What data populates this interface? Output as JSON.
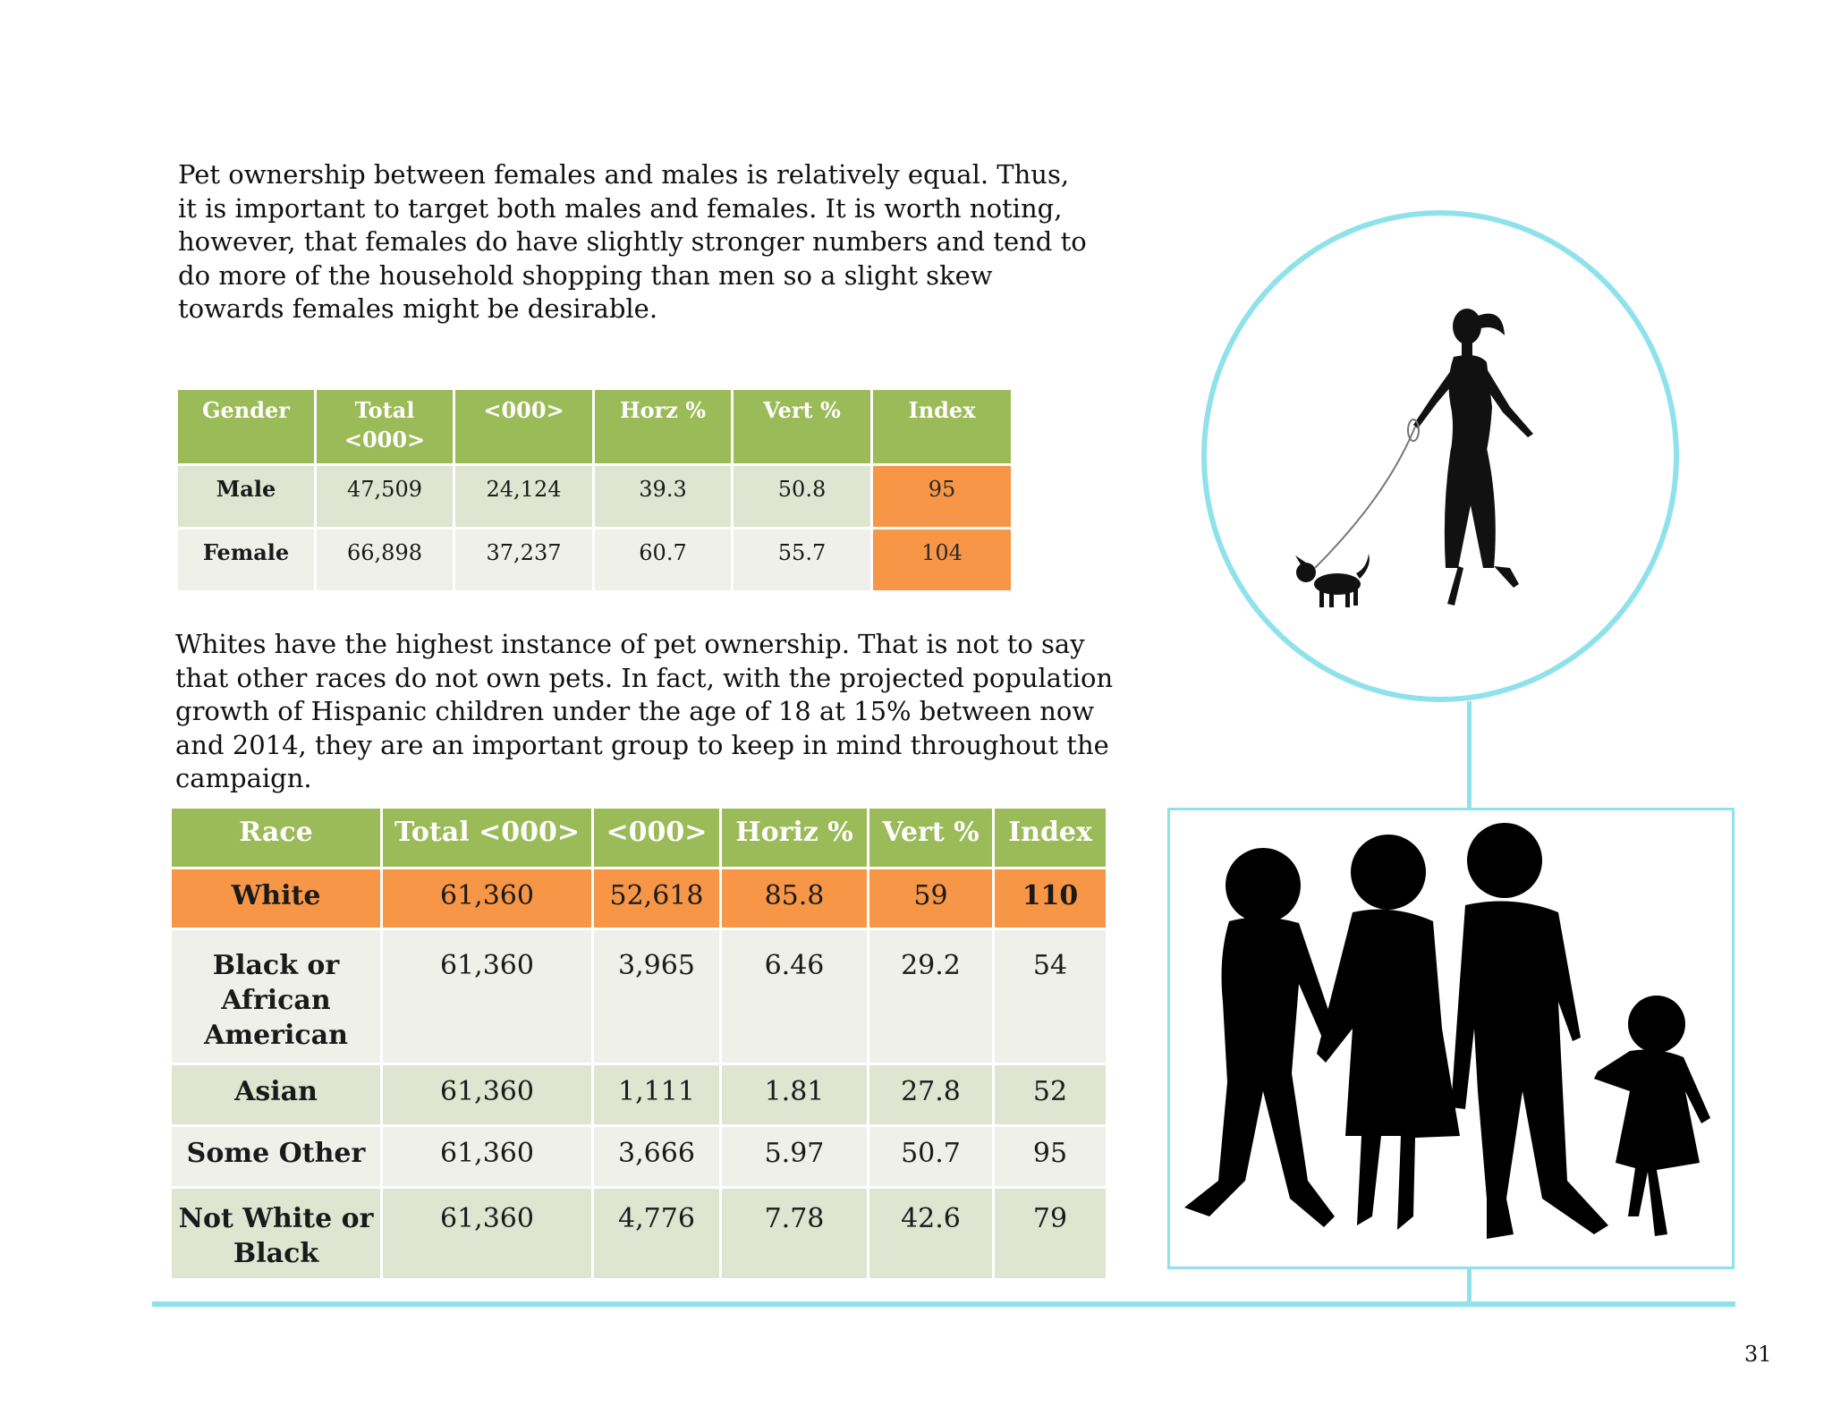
{
  "intro_gender": "Pet ownership between females and males is relatively equal. Thus, it is important to target both males and females. It is worth noting, however, that females do have slightly stronger numbers and tend to do more of the household shopping than men so a slight skew towards females might be desirable.",
  "intro_race": "Whites have the highest instance of pet ownership. That is not to say that other races do not own pets. In fact, with the projected population growth of Hispanic children under the age of 18 at 15% between now and 2014, they are an important group to keep in mind throughout the campaign.",
  "gender_table": {
    "headers": [
      "Gender",
      "Total <000>",
      "<000>",
      "Horz %",
      "Vert %",
      "Index"
    ],
    "rows": [
      {
        "label": "Male",
        "total": "47,509",
        "count": "24,124",
        "horz": "39.3",
        "vert": "50.8",
        "index": "95"
      },
      {
        "label": "Female",
        "total": "66,898",
        "count": "37,237",
        "horz": "60.7",
        "vert": "55.7",
        "index": "104"
      }
    ]
  },
  "race_table": {
    "headers": [
      "Race",
      "Total <000>",
      "<000>",
      "Horiz %",
      "Vert %",
      "Index"
    ],
    "rows": [
      {
        "label": "White",
        "total": "61,360",
        "count": "52,618",
        "horz": "85.8",
        "vert": "59",
        "index": "110"
      },
      {
        "label": "Black or African American",
        "total": "61,360",
        "count": "3,965",
        "horz": "6.46",
        "vert": "29.2",
        "index": "54"
      },
      {
        "label": "Asian",
        "total": "61,360",
        "count": "1,111",
        "horz": "1.81",
        "vert": "27.8",
        "index": "52"
      },
      {
        "label": "Some Other",
        "total": "61,360",
        "count": "3,666",
        "horz": "5.97",
        "vert": "50.7",
        "index": "95"
      },
      {
        "label": "Not White or Black",
        "total": "61,360",
        "count": "4,776",
        "horz": "7.78",
        "vert": "42.6",
        "index": "79"
      }
    ]
  },
  "colors": {
    "header_green": "#9bbb59",
    "highlight_orange": "#f79646",
    "row_light_green": "#dfe5d0",
    "row_pale": "#eef0e9",
    "accent_cyan": "#8fe2ec"
  },
  "illustrations": [
    "woman-walking-dog-silhouette",
    "family-walking-silhouette"
  ],
  "page_number": "31"
}
